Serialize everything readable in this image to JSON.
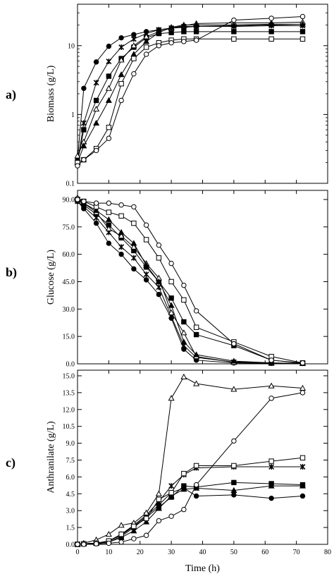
{
  "chart_data": [
    {
      "panel_label": "a)",
      "type": "line",
      "scale": "log",
      "ylabel": "Biomass (g/L)",
      "ylim": [
        0.1,
        40
      ],
      "yticks": [
        {
          "v": 0.1,
          "label": "0.1"
        },
        {
          "v": 1,
          "label": "1"
        },
        {
          "v": 10,
          "label": "10"
        }
      ],
      "xlim": [
        0,
        80
      ],
      "x": [
        0,
        2,
        6,
        10,
        14,
        18,
        22,
        26,
        30,
        34,
        38,
        50,
        62,
        72
      ],
      "series": [
        {
          "marker": "filled-circle",
          "values": [
            0.22,
            2.4,
            5.8,
            9.8,
            13,
            14.5,
            16,
            17,
            18,
            18.5,
            19,
            19.5,
            20,
            20.5
          ]
        },
        {
          "marker": "star",
          "values": [
            0.2,
            0.75,
            2.9,
            5.9,
            9.5,
            12.5,
            15,
            17,
            18,
            19,
            19,
            19,
            19.5,
            19.5
          ]
        },
        {
          "marker": "filled-square",
          "values": [
            0.2,
            0.6,
            1.6,
            3.6,
            6.5,
            9.5,
            13,
            15,
            15.5,
            16,
            16,
            16,
            16,
            16
          ]
        },
        {
          "marker": "open-triangle",
          "values": [
            0.25,
            0.4,
            1.2,
            2.4,
            6.2,
            10,
            13.5,
            16,
            18,
            19.5,
            21,
            21.5,
            21.5,
            22
          ]
        },
        {
          "marker": "filled-triangle",
          "values": [
            0.2,
            0.35,
            0.75,
            1.6,
            3.8,
            7.5,
            11.5,
            15.5,
            18.5,
            20,
            20,
            20,
            20.5,
            20.5
          ]
        },
        {
          "marker": "open-square",
          "values": [
            0.2,
            0.22,
            0.32,
            0.65,
            2.8,
            6.5,
            9.5,
            11,
            12,
            12.5,
            12.5,
            12.5,
            12.5,
            12.5
          ]
        },
        {
          "marker": "open-circle",
          "values": [
            0.18,
            0.22,
            0.3,
            0.45,
            1.6,
            3.9,
            7.5,
            10,
            11,
            11.5,
            12,
            23.5,
            25,
            26.5
          ]
        }
      ]
    },
    {
      "panel_label": "b)",
      "type": "line",
      "scale": "linear",
      "ylabel": "Glucose (g/L)",
      "ylim": [
        0,
        95
      ],
      "yticks": [
        {
          "v": 0,
          "label": "0.0"
        },
        {
          "v": 15,
          "label": "15.0"
        },
        {
          "v": 30,
          "label": "30.0"
        },
        {
          "v": 45,
          "label": "45.0"
        },
        {
          "v": 60,
          "label": "60.0"
        },
        {
          "v": 75,
          "label": "75.0"
        },
        {
          "v": 90,
          "label": "90.0"
        }
      ],
      "xlim": [
        0,
        80
      ],
      "x": [
        0,
        2,
        6,
        10,
        14,
        18,
        22,
        26,
        30,
        34,
        38,
        50,
        62,
        72
      ],
      "series": [
        {
          "marker": "filled-circle",
          "values": [
            89,
            85,
            77,
            66,
            60,
            52,
            46,
            38,
            25,
            8,
            2,
            0.5,
            0.3,
            0.2
          ]
        },
        {
          "marker": "star",
          "values": [
            89,
            86,
            80,
            72,
            64,
            58,
            49,
            42,
            26,
            10,
            3.5,
            1,
            0.5,
            0.3
          ]
        },
        {
          "marker": "filled-square",
          "values": [
            90,
            87,
            82,
            76,
            69,
            62,
            53,
            45,
            36,
            23,
            16,
            10,
            2,
            0.3
          ]
        },
        {
          "marker": "open-triangle",
          "values": [
            91,
            88,
            83,
            74,
            70,
            64,
            55,
            47,
            28,
            17,
            4,
            0.8,
            0.3,
            0.2
          ]
        },
        {
          "marker": "filled-triangle",
          "values": [
            90,
            88,
            84,
            79,
            72,
            66,
            54,
            45,
            32,
            12,
            5,
            1.5,
            0.5,
            0.2
          ]
        },
        {
          "marker": "open-square",
          "values": [
            90,
            89,
            86,
            83,
            81,
            77,
            68,
            58,
            45,
            35,
            20,
            12,
            4,
            0.5
          ]
        },
        {
          "marker": "open-circle",
          "values": [
            90,
            89,
            88,
            88,
            87,
            86,
            76,
            65,
            55,
            43,
            29,
            11,
            2,
            0.5
          ]
        }
      ]
    },
    {
      "panel_label": "c)",
      "type": "line",
      "scale": "linear",
      "ylabel": "Anthranilate (g/L)",
      "xlabel": "Time (h)",
      "ylim": [
        0,
        15.5
      ],
      "yticks": [
        {
          "v": 0,
          "label": "0.0"
        },
        {
          "v": 1.5,
          "label": "1.5"
        },
        {
          "v": 3,
          "label": "3.0"
        },
        {
          "v": 4.5,
          "label": "4.5"
        },
        {
          "v": 6,
          "label": "6.0"
        },
        {
          "v": 7.5,
          "label": "7.5"
        },
        {
          "v": 9,
          "label": "9.0"
        },
        {
          "v": 10.5,
          "label": "10.5"
        },
        {
          "v": 12,
          "label": "12.0"
        },
        {
          "v": 13.5,
          "label": "13.5"
        },
        {
          "v": 15,
          "label": "15.0"
        }
      ],
      "xlim": [
        0,
        80
      ],
      "xticks": [
        0,
        10,
        20,
        30,
        40,
        50,
        60,
        70,
        80
      ],
      "x": [
        0,
        2,
        6,
        10,
        14,
        18,
        22,
        26,
        30,
        34,
        38,
        50,
        62,
        72
      ],
      "series": [
        {
          "marker": "filled-circle",
          "values": [
            0,
            0.05,
            0.1,
            0.3,
            0.8,
            1.6,
            2.5,
            3.5,
            4.6,
            5.0,
            4.3,
            4.4,
            4.1,
            4.3
          ]
        },
        {
          "marker": "star",
          "values": [
            0,
            0.05,
            0.1,
            0.3,
            0.9,
            1.7,
            2.6,
            3.8,
            5.2,
            6.2,
            6.8,
            6.9,
            6.9,
            6.9
          ]
        },
        {
          "marker": "filled-square",
          "values": [
            0,
            0.05,
            0.1,
            0.2,
            0.7,
            1.5,
            2.4,
            3.3,
            4.2,
            5.2,
            5.1,
            5.5,
            5.4,
            5.3
          ]
        },
        {
          "marker": "open-triangle",
          "values": [
            0,
            0.1,
            0.4,
            0.9,
            1.7,
            1.9,
            2.8,
            4.5,
            13.0,
            14.9,
            14.3,
            13.8,
            14.1,
            13.9
          ]
        },
        {
          "marker": "filled-triangle",
          "values": [
            0,
            0.05,
            0.1,
            0.2,
            0.6,
            1.2,
            2.0,
            3.2,
            4.3,
            4.9,
            5.0,
            4.8,
            5.2,
            5.2
          ]
        },
        {
          "marker": "open-square",
          "values": [
            0,
            0.05,
            0.1,
            0.3,
            0.9,
            1.6,
            2.3,
            4.0,
            4.6,
            6.3,
            7.0,
            7.0,
            7.4,
            7.7
          ]
        },
        {
          "marker": "open-circle",
          "values": [
            0,
            0,
            0.05,
            0.1,
            0.2,
            0.5,
            0.8,
            2.1,
            2.5,
            3.1,
            5.3,
            9.2,
            13.0,
            13.5
          ]
        }
      ]
    }
  ]
}
